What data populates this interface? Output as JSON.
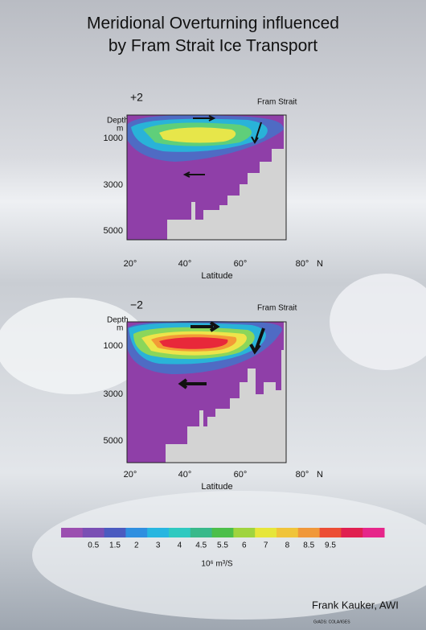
{
  "header": {
    "title_lines": [
      "Meridional Overturning influenced",
      "by Fram Strait Ice Transport"
    ]
  },
  "panels": [
    {
      "label": "+2",
      "strait": "Fram Strait",
      "depth_label": "Depth",
      "depth_unit": "m",
      "yticks": [
        "1000",
        "3000",
        "5000"
      ],
      "xticks": [
        "20°",
        "40°",
        "60°",
        "80°",
        "N"
      ],
      "xlabel": "Latitude"
    },
    {
      "label": "−2",
      "strait": "Fram Strait",
      "depth_label": "Depth",
      "depth_unit": "m",
      "yticks": [
        "1000",
        "3000",
        "5000"
      ],
      "xticks": [
        "20°",
        "40°",
        "60°",
        "80°",
        "N"
      ],
      "xlabel": "Latitude"
    }
  ],
  "colorbar": {
    "labels": [
      "0.5",
      "1.5",
      "2",
      "3",
      "4",
      "4.5",
      "5.5",
      "6",
      "7",
      "8",
      "8.5",
      "9.5"
    ],
    "unit": "10⁶ m³/S"
  },
  "footer": {
    "author": "Frank Kauker, AWI",
    "credit": "GrADS: COLA/IGES"
  }
}
